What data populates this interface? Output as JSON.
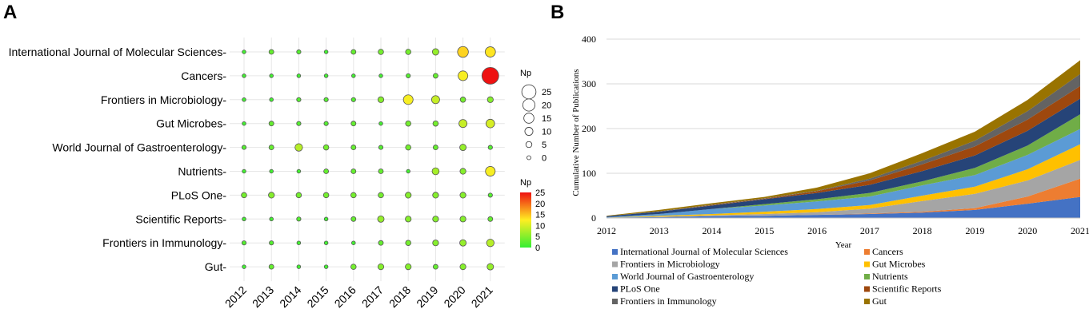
{
  "panels": {
    "a": "A",
    "b": "B"
  },
  "chart_data": [
    {
      "type": "scatter",
      "subtype": "bubble",
      "categories_x": [
        "2012",
        "2013",
        "2014",
        "2015",
        "2016",
        "2017",
        "2018",
        "2019",
        "2020",
        "2021"
      ],
      "categories_y": [
        "International Journal of Molecular Sciences",
        "Cancers",
        "Frontiers in Microbiology",
        "Gut Microbes",
        "World Journal of Gastroenterology",
        "Nutrients",
        "PLoS One",
        "Scientific Reports",
        "Frontiers in Immunology",
        "Gut"
      ],
      "values": [
        [
          1,
          3,
          2,
          1,
          3,
          4,
          4,
          6,
          14,
          13
        ],
        [
          1,
          1,
          1,
          1,
          1,
          1,
          2,
          3,
          12,
          25
        ],
        [
          1,
          1,
          2,
          2,
          2,
          5,
          12,
          9,
          4,
          5
        ],
        [
          1,
          3,
          2,
          2,
          3,
          1,
          4,
          4,
          9,
          10
        ],
        [
          2,
          3,
          8,
          4,
          3,
          2,
          4,
          3,
          6,
          2
        ],
        [
          1,
          1,
          1,
          3,
          3,
          3,
          1,
          7,
          5,
          12
        ],
        [
          4,
          5,
          4,
          4,
          4,
          4,
          5,
          5,
          5,
          2
        ],
        [
          1,
          1,
          2,
          1,
          3,
          6,
          5,
          5,
          5,
          3
        ],
        [
          2,
          2,
          1,
          1,
          1,
          3,
          4,
          5,
          6,
          8
        ],
        [
          1,
          3,
          1,
          1,
          4,
          5,
          5,
          3,
          5,
          6
        ]
      ],
      "size_legend": {
        "title": "Np",
        "values": [
          25,
          20,
          15,
          10,
          5,
          0
        ]
      },
      "color_legend": {
        "title": "Np",
        "ticks": [
          25,
          20,
          15,
          10,
          5,
          0
        ],
        "range": [
          0,
          25
        ],
        "low_color": "#33ee33",
        "mid_color": "#ffee22",
        "high_color": "#ee1111"
      }
    },
    {
      "type": "area",
      "stacked": true,
      "x": [
        "2012",
        "2013",
        "2014",
        "2015",
        "2016",
        "2017",
        "2018",
        "2019",
        "2020",
        "2021"
      ],
      "xlabel": "Year",
      "ylabel": "Cumulative Number of Publications",
      "ylim": [
        0,
        400
      ],
      "yticks": [
        0,
        100,
        200,
        300,
        400
      ],
      "series": [
        {
          "name": "International Journal of Molecular Sciences",
          "color": "#4472c4",
          "values": [
            1,
            2,
            4,
            5,
            7,
            9,
            12,
            18,
            32,
            47
          ]
        },
        {
          "name": "Cancers",
          "color": "#ed7d31",
          "values": [
            0,
            0,
            0,
            0,
            0,
            1,
            2,
            4,
            16,
            41
          ]
        },
        {
          "name": "Frontiers in Microbiology",
          "color": "#a5a5a5",
          "values": [
            0,
            1,
            2,
            4,
            6,
            11,
            24,
            32,
            36,
            42
          ]
        },
        {
          "name": "Gut Microbes",
          "color": "#ffc000",
          "values": [
            0,
            2,
            3,
            5,
            7,
            8,
            12,
            16,
            25,
            35
          ]
        },
        {
          "name": "World Journal of Gastroenterology",
          "color": "#5b9bd5",
          "values": [
            1,
            4,
            11,
            14,
            17,
            19,
            23,
            26,
            32,
            34
          ]
        },
        {
          "name": "Nutrients",
          "color": "#70ad47",
          "values": [
            0,
            0,
            0,
            3,
            5,
            8,
            9,
            16,
            21,
            33
          ]
        },
        {
          "name": "PLoS One",
          "color": "#264478",
          "values": [
            2,
            5,
            8,
            11,
            14,
            18,
            23,
            28,
            33,
            35
          ]
        },
        {
          "name": "Scientific Reports",
          "color": "#9e480e",
          "values": [
            0,
            0,
            1,
            1,
            4,
            10,
            15,
            20,
            25,
            28
          ]
        },
        {
          "name": "Frontiers in Immunology",
          "color": "#636363",
          "values": [
            0,
            1,
            1,
            1,
            1,
            4,
            8,
            13,
            19,
            27
          ]
        },
        {
          "name": "Gut",
          "color": "#997300",
          "values": [
            1,
            3,
            3,
            3,
            7,
            12,
            17,
            20,
            25,
            31
          ]
        }
      ]
    }
  ]
}
